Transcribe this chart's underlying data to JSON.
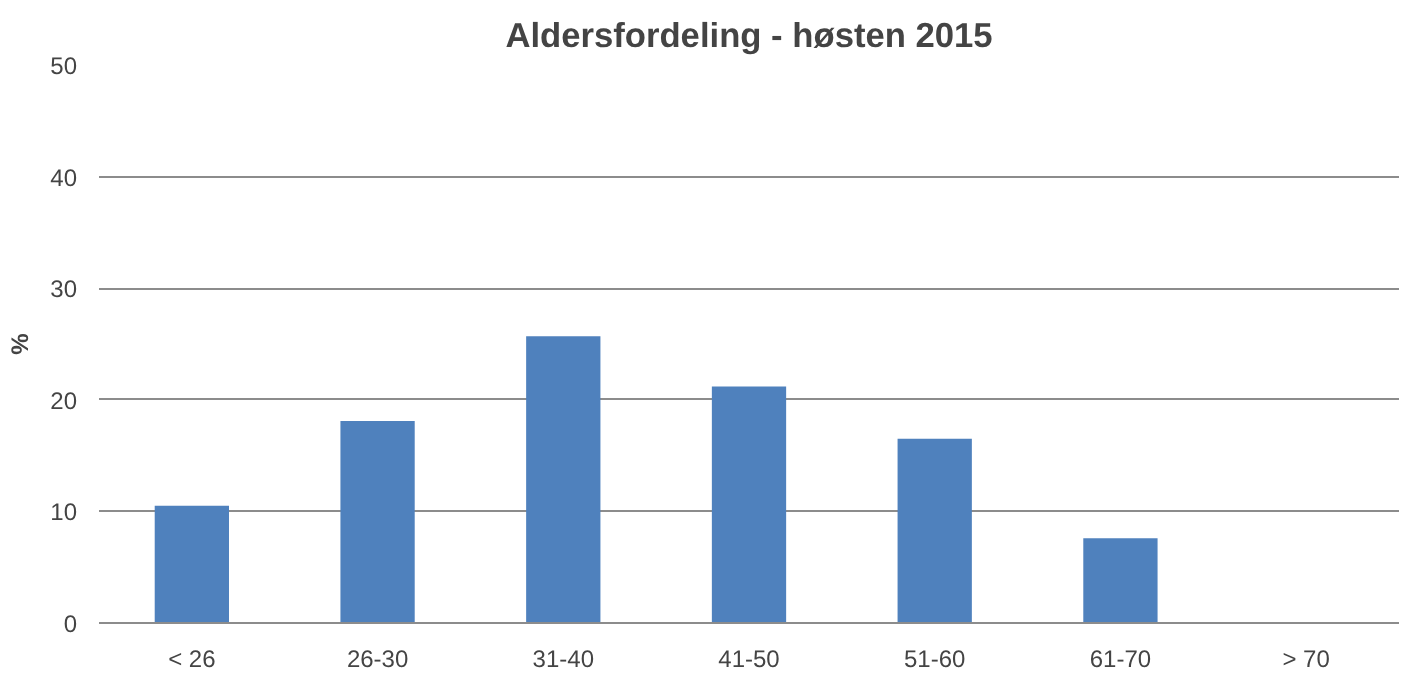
{
  "chart_data": {
    "type": "bar",
    "title": "Aldersfordeling - høsten 2015",
    "ylabel": "%",
    "categories": [
      "< 26",
      "26-30",
      "31-40",
      "41-50",
      "51-60",
      "61-70",
      "> 70"
    ],
    "values": [
      10.5,
      18.1,
      25.7,
      21.2,
      16.5,
      7.6,
      0
    ],
    "color": "#4f81bd",
    "ylim": [
      0,
      50
    ],
    "yticks": [
      0,
      10,
      20,
      30,
      40,
      50
    ],
    "grid": "y"
  }
}
